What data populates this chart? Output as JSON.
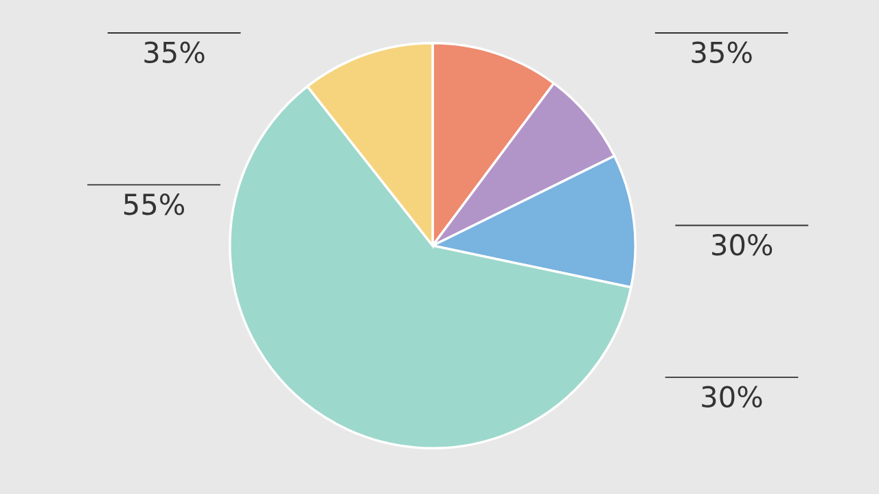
{
  "chart_data": {
    "type": "pie",
    "categories": [
      null,
      null,
      null,
      null,
      null
    ],
    "values": [
      10.2,
      7.5,
      10.6,
      61.1,
      10.6
    ],
    "colors": [
      "#ee8a6e",
      "#b295c8",
      "#79b3df",
      "#9dd8cc",
      "#f6d47e"
    ],
    "annotations": [
      "35%",
      "35%",
      "55%",
      "30%",
      "30%"
    ]
  }
}
